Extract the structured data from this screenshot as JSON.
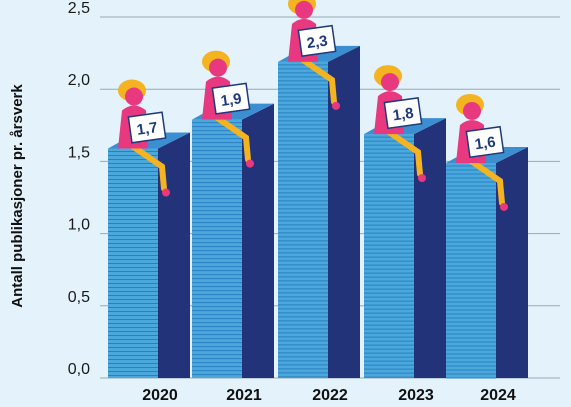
{
  "chart_data": {
    "type": "bar",
    "categories": [
      "2020",
      "2021",
      "2022",
      "2023",
      "2024"
    ],
    "values": [
      1.7,
      1.9,
      2.3,
      1.8,
      1.6
    ],
    "value_labels": [
      "1,7",
      "1,9",
      "2,3",
      "1,8",
      "1,6"
    ],
    "highlight_category": "2024",
    "title": "",
    "xlabel": "",
    "ylabel": "Antall publikasjoner pr. årsverk",
    "ylim": [
      0,
      2.5
    ],
    "yticks": [
      0,
      0.5,
      1.0,
      1.5,
      2.0,
      2.5
    ],
    "ytick_labels": [
      "0,0",
      "0,5",
      "1,0",
      "1,5",
      "2,0",
      "2,5"
    ],
    "grid": true,
    "legend": "none",
    "colors": {
      "background": "#e3f2fb",
      "bar_front": "#4aa8dd",
      "bar_stripe": "#2a7fc0",
      "bar_side": "#22337a",
      "bar_top": "#3b8fd0",
      "figure_skin": "#e8387f",
      "figure_hair": "#f4b321",
      "figure_leg": "#f4b321",
      "sign_text": "#1f3a7a",
      "highlight_text": "#e0182d",
      "gridline": "#9aaab4"
    },
    "decorations": "person-sitting-on-stack-holding-value-sign"
  }
}
